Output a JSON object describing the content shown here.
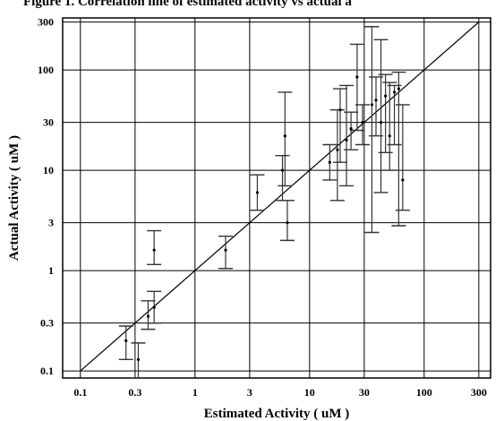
{
  "figure": {
    "title": "Figure 1. Correlation line of estimated activity vs actual a"
  },
  "chart_data": {
    "type": "scatter",
    "title": "Figure 1. Correlation line of estimated activity vs actual a",
    "xlabel": "Estimated Activity ( uM )",
    "ylabel": "Actual Activity ( uM )",
    "xscale": "log",
    "yscale": "log",
    "xlim": [
      0.07,
      380
    ],
    "ylim": [
      0.085,
      330
    ],
    "grid": true,
    "x_ticks": [
      0.1,
      0.3,
      1,
      3,
      10,
      30,
      100,
      300
    ],
    "x_tick_labels": [
      "0.1",
      "0.3",
      "1",
      "3",
      "10",
      "30",
      "100",
      "300"
    ],
    "y_ticks": [
      0.1,
      0.3,
      1,
      3,
      10,
      30,
      100,
      300
    ],
    "y_tick_labels": [
      "0.1",
      "0.3",
      "1",
      "3",
      "10",
      "30",
      "100",
      "300"
    ],
    "reference_line": {
      "x": [
        0.1,
        300
      ],
      "y": [
        0.1,
        300
      ]
    },
    "points": [
      {
        "x": 0.25,
        "y": 0.2,
        "ylow": 0.13,
        "yhigh": 0.28
      },
      {
        "x": 0.32,
        "y": 0.13,
        "ylow": 0.085,
        "yhigh": 0.19
      },
      {
        "x": 0.39,
        "y": 0.35,
        "ylow": 0.26,
        "yhigh": 0.5
      },
      {
        "x": 0.44,
        "y": 0.43,
        "ylow": 0.3,
        "yhigh": 0.62
      },
      {
        "x": 0.44,
        "y": 1.6,
        "ylow": 1.15,
        "yhigh": 2.5
      },
      {
        "x": 1.85,
        "y": 1.6,
        "ylow": 1.05,
        "yhigh": 2.2
      },
      {
        "x": 3.5,
        "y": 6.0,
        "ylow": 4.0,
        "yhigh": 9.0
      },
      {
        "x": 5.8,
        "y": 10.0,
        "ylow": 5.0,
        "yhigh": 14.0
      },
      {
        "x": 6.1,
        "y": 22.0,
        "ylow": 7.0,
        "yhigh": 60.0
      },
      {
        "x": 6.4,
        "y": 3.0,
        "ylow": 2.0,
        "yhigh": 5.0
      },
      {
        "x": 15.0,
        "y": 12.0,
        "ylow": 8.0,
        "yhigh": 18.0
      },
      {
        "x": 17.5,
        "y": 16.0,
        "ylow": 5.0,
        "yhigh": 40.0
      },
      {
        "x": 18.5,
        "y": 40.0,
        "ylow": 12.0,
        "yhigh": 65.0
      },
      {
        "x": 21.0,
        "y": 20.0,
        "ylow": 7.0,
        "yhigh": 70.0
      },
      {
        "x": 23.0,
        "y": 26.0,
        "ylow": 16.0,
        "yhigh": 38.0
      },
      {
        "x": 26.0,
        "y": 85.0,
        "ylow": 25.0,
        "yhigh": 180.0
      },
      {
        "x": 29.0,
        "y": 30.0,
        "ylow": 18.0,
        "yhigh": 45.0
      },
      {
        "x": 35.0,
        "y": 45.0,
        "ylow": 2.4,
        "yhigh": 270.0
      },
      {
        "x": 38.0,
        "y": 50.0,
        "ylow": 22.0,
        "yhigh": 85.0
      },
      {
        "x": 42.0,
        "y": 30.0,
        "ylow": 6.0,
        "yhigh": 200.0
      },
      {
        "x": 46.0,
        "y": 55.0,
        "ylow": 15.0,
        "yhigh": 90.0
      },
      {
        "x": 50.0,
        "y": 22.0,
        "ylow": 10.0,
        "yhigh": 75.0
      },
      {
        "x": 55.0,
        "y": 60.0,
        "ylow": 18.0,
        "yhigh": 70.0
      },
      {
        "x": 60.0,
        "y": 65.0,
        "ylow": 2.8,
        "yhigh": 95.0
      },
      {
        "x": 65.0,
        "y": 8.0,
        "ylow": 4.0,
        "yhigh": 45.0
      }
    ]
  }
}
